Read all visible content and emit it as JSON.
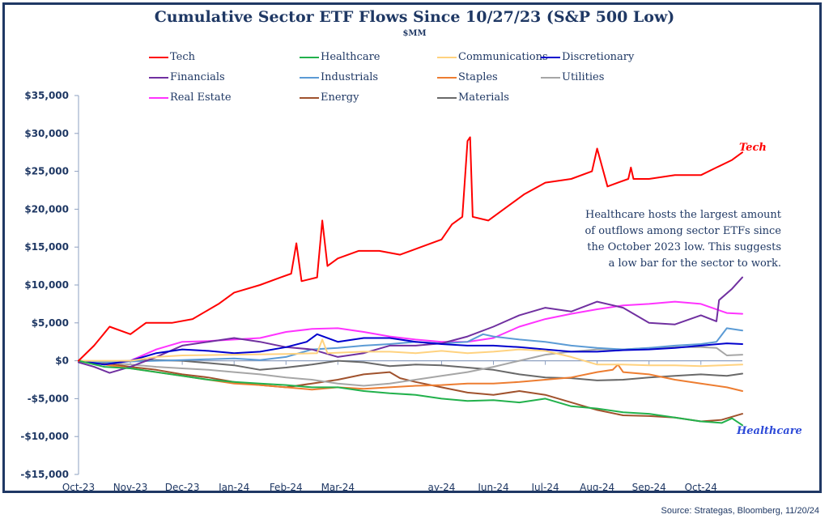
{
  "chart_data": {
    "type": "line",
    "title": "Cumulative Sector ETF Flows Since 10/27/23 (S&P 500 Low)",
    "subtitle": "$MM",
    "xlabel": "",
    "ylabel": "",
    "ylim": [
      -15000,
      35000
    ],
    "yticks": [
      35000,
      30000,
      25000,
      20000,
      15000,
      10000,
      5000,
      0,
      -5000,
      -10000,
      -15000
    ],
    "ytick_labels": [
      "$35,000",
      "$30,000",
      "$25,000",
      "$20,000",
      "$15,000",
      "$10,000",
      "$5,000",
      "$0",
      "-$5,000",
      "-$10,000",
      "-$15,000"
    ],
    "x_range_months": [
      0,
      12.8
    ],
    "xtick_positions": [
      0,
      1,
      2,
      3,
      4,
      5,
      7,
      8,
      9,
      10,
      11,
      12
    ],
    "xtick_labels": [
      "Oct-23",
      "Nov-23",
      "Dec-23",
      "Jan-24",
      "Feb-24",
      "Mar-24",
      "ay-24",
      "Jun-24",
      "Jul-24",
      "Aug-24",
      "Sep-24",
      "Oct-24"
    ],
    "grid": false,
    "legend_position": "top",
    "x_unit": "months since 10/27/23",
    "series": [
      {
        "name": "Tech",
        "color": "#ff0000",
        "x": [
          0,
          0.3,
          0.6,
          1.0,
          1.3,
          1.8,
          2.2,
          2.7,
          3.0,
          3.5,
          3.9,
          4.1,
          4.2,
          4.3,
          4.6,
          4.7,
          4.8,
          5.0,
          5.4,
          5.8,
          6.2,
          6.6,
          7.0,
          7.2,
          7.4,
          7.5,
          7.55,
          7.6,
          7.9,
          8.3,
          8.6,
          9.0,
          9.5,
          9.9,
          10.0,
          10.2,
          10.4,
          10.6,
          10.65,
          10.7,
          11.0,
          11.5,
          12.0,
          12.3,
          12.6,
          12.8
        ],
        "values": [
          0,
          2000,
          4500,
          3500,
          5000,
          5000,
          5500,
          7500,
          9000,
          10000,
          11000,
          11500,
          15500,
          10500,
          11000,
          18500,
          12500,
          13500,
          14500,
          14500,
          14000,
          15000,
          16000,
          18000,
          19000,
          29000,
          29500,
          19000,
          18500,
          20500,
          22000,
          23500,
          24000,
          25000,
          28000,
          23000,
          23500,
          24000,
          25500,
          24000,
          24000,
          24500,
          24500,
          25500,
          26500,
          27500
        ]
      },
      {
        "name": "Healthcare",
        "color": "#22b14c",
        "x": [
          0,
          0.5,
          1.0,
          1.5,
          2.0,
          2.5,
          3.0,
          3.5,
          4.0,
          4.5,
          5.0,
          5.5,
          6.0,
          6.5,
          7.0,
          7.5,
          8.0,
          8.5,
          9.0,
          9.5,
          10.0,
          10.5,
          11.0,
          11.5,
          12.0,
          12.4,
          12.6,
          12.8
        ],
        "values": [
          0,
          -800,
          -1000,
          -1500,
          -2000,
          -2500,
          -2800,
          -3000,
          -3200,
          -3500,
          -3500,
          -4000,
          -4300,
          -4500,
          -5000,
          -5300,
          -5200,
          -5500,
          -5000,
          -6000,
          -6300,
          -6800,
          -7000,
          -7500,
          -8000,
          -8200,
          -7600,
          -8500
        ]
      },
      {
        "name": "Communications",
        "color": "#ffd27f",
        "x": [
          0,
          1.0,
          1.5,
          2.0,
          3.0,
          4.0,
          4.6,
          4.7,
          4.8,
          5.5,
          6.0,
          6.5,
          7.0,
          7.5,
          8.0,
          8.5,
          9.0,
          9.5,
          10.0,
          10.5,
          11.0,
          11.5,
          12.0,
          12.8
        ],
        "values": [
          0,
          0,
          500,
          700,
          800,
          900,
          1000,
          2800,
          1000,
          1200,
          1200,
          1000,
          1300,
          1000,
          1200,
          1500,
          1300,
          500,
          -500,
          -500,
          -600,
          -600,
          -700,
          -500
        ]
      },
      {
        "name": "Discretionary",
        "color": "#0000cd",
        "x": [
          0,
          0.5,
          1.0,
          1.5,
          2.0,
          2.5,
          3.0,
          3.5,
          4.0,
          4.4,
          4.6,
          5.0,
          5.5,
          6.0,
          6.5,
          7.0,
          7.5,
          8.0,
          8.5,
          9.0,
          9.5,
          10.0,
          10.5,
          11.0,
          11.5,
          12.0,
          12.5,
          12.8
        ],
        "values": [
          0,
          -500,
          0,
          1000,
          1500,
          1300,
          1000,
          1200,
          1800,
          2500,
          3500,
          2500,
          3000,
          3000,
          2500,
          2200,
          2000,
          2000,
          1800,
          1500,
          1200,
          1200,
          1400,
          1500,
          1700,
          2000,
          2300,
          2200
        ]
      },
      {
        "name": "Financials",
        "color": "#7030a0",
        "x": [
          0,
          0.3,
          0.6,
          1.0,
          1.5,
          2.0,
          2.5,
          3.0,
          3.5,
          4.0,
          4.5,
          5.0,
          5.5,
          6.0,
          6.5,
          7.0,
          7.5,
          8.0,
          8.5,
          9.0,
          9.5,
          10.0,
          10.5,
          11.0,
          11.5,
          12.0,
          12.3,
          12.35,
          12.6,
          12.8
        ],
        "values": [
          -200,
          -800,
          -1600,
          -800,
          500,
          2000,
          2500,
          3000,
          2500,
          1800,
          1500,
          500,
          1000,
          2000,
          2000,
          2300,
          3200,
          4500,
          6000,
          7000,
          6500,
          7800,
          7000,
          5000,
          4800,
          6000,
          5200,
          8000,
          9500,
          11000
        ]
      },
      {
        "name": "Industrials",
        "color": "#5b9bd5",
        "x": [
          0,
          0.5,
          1.0,
          1.5,
          2.0,
          2.5,
          3.0,
          3.5,
          4.0,
          4.5,
          5.0,
          5.5,
          6.0,
          6.5,
          7.0,
          7.5,
          7.8,
          8.0,
          8.5,
          9.0,
          9.5,
          10.0,
          10.5,
          11.0,
          11.5,
          12.0,
          12.3,
          12.5,
          12.8
        ],
        "values": [
          0,
          -200,
          -100,
          0,
          100,
          200,
          300,
          100,
          500,
          1500,
          1700,
          2000,
          2200,
          2500,
          2300,
          2500,
          3500,
          3200,
          2800,
          2500,
          2000,
          1700,
          1500,
          1700,
          2000,
          2200,
          2500,
          4300,
          4000
        ]
      },
      {
        "name": "Staples",
        "color": "#ed7d31",
        "x": [
          0,
          0.5,
          1.0,
          1.5,
          2.0,
          2.5,
          3.0,
          3.5,
          4.0,
          4.5,
          5.0,
          5.5,
          6.0,
          6.5,
          7.0,
          7.5,
          8.0,
          8.5,
          9.0,
          9.5,
          10.0,
          10.3,
          10.4,
          10.5,
          11.0,
          11.5,
          12.0,
          12.5,
          12.8
        ],
        "values": [
          0,
          -500,
          -1000,
          -1500,
          -2000,
          -2500,
          -3000,
          -3200,
          -3500,
          -3800,
          -3500,
          -3700,
          -3500,
          -3300,
          -3200,
          -3000,
          -3000,
          -2800,
          -2500,
          -2200,
          -1500,
          -1200,
          -500,
          -1500,
          -1800,
          -2500,
          -3000,
          -3500,
          -4000
        ]
      },
      {
        "name": "Utilities",
        "color": "#a6a6a6",
        "x": [
          0,
          0.5,
          1.0,
          1.5,
          2.0,
          2.5,
          3.0,
          3.5,
          4.0,
          4.5,
          5.0,
          5.5,
          6.0,
          6.5,
          7.0,
          7.5,
          8.0,
          8.5,
          9.0,
          9.5,
          10.0,
          10.5,
          11.0,
          11.5,
          12.0,
          12.3,
          12.5,
          12.8
        ],
        "values": [
          0,
          -200,
          -500,
          -800,
          -1000,
          -1200,
          -1500,
          -1800,
          -2200,
          -2500,
          -3000,
          -3300,
          -3000,
          -2500,
          -2000,
          -1500,
          -800,
          0,
          800,
          1200,
          1500,
          1500,
          1700,
          1800,
          1800,
          1700,
          700,
          800
        ]
      },
      {
        "name": "Real Estate",
        "color": "#ff33ff",
        "x": [
          0,
          0.5,
          1.0,
          1.5,
          2.0,
          2.5,
          3.0,
          3.5,
          4.0,
          4.5,
          5.0,
          5.5,
          6.0,
          6.5,
          7.0,
          7.5,
          8.0,
          8.5,
          9.0,
          9.5,
          10.0,
          10.5,
          11.0,
          11.5,
          12.0,
          12.5,
          12.8
        ],
        "values": [
          0,
          -500,
          0,
          1500,
          2500,
          2600,
          2800,
          3000,
          3800,
          4200,
          4300,
          3800,
          3200,
          2800,
          2500,
          2500,
          3000,
          4500,
          5500,
          6200,
          6800,
          7300,
          7500,
          7800,
          7500,
          6300,
          6200
        ]
      },
      {
        "name": "Energy",
        "color": "#a0522d",
        "x": [
          0,
          0.5,
          1.0,
          1.5,
          2.0,
          2.5,
          3.0,
          3.5,
          4.0,
          4.5,
          5.0,
          5.5,
          6.0,
          6.2,
          6.5,
          7.0,
          7.5,
          8.0,
          8.5,
          9.0,
          9.5,
          10.0,
          10.5,
          11.0,
          11.5,
          12.0,
          12.4,
          12.8
        ],
        "values": [
          0,
          -300,
          -800,
          -1200,
          -1800,
          -2200,
          -2800,
          -3200,
          -3500,
          -3000,
          -2500,
          -1800,
          -1500,
          -2300,
          -2800,
          -3500,
          -4200,
          -4500,
          -4000,
          -4500,
          -5500,
          -6500,
          -7200,
          -7300,
          -7500,
          -8000,
          -7800,
          -7000
        ]
      },
      {
        "name": "Materials",
        "color": "#696969",
        "x": [
          0,
          0.5,
          1.0,
          1.5,
          2.0,
          2.5,
          3.0,
          3.5,
          4.0,
          4.5,
          5.0,
          5.5,
          6.0,
          6.5,
          7.0,
          7.5,
          8.0,
          8.5,
          9.0,
          9.5,
          10.0,
          10.5,
          11.0,
          11.5,
          12.0,
          12.5,
          12.8
        ],
        "values": [
          0,
          -100,
          0,
          100,
          0,
          -300,
          -600,
          -1200,
          -900,
          -500,
          0,
          -200,
          -700,
          -500,
          -600,
          -900,
          -1200,
          -1800,
          -2200,
          -2300,
          -2600,
          -2500,
          -2200,
          -2000,
          -1800,
          -2000,
          -1700
        ]
      }
    ],
    "annotations": [
      {
        "text": "Tech",
        "color": "#ff0000",
        "anchor": "end-of-series",
        "series": "Tech"
      },
      {
        "text": "Healthcare",
        "color": "#2e4bd8",
        "anchor": "end-of-series",
        "series": "Healthcare"
      },
      {
        "text": "Healthcare hosts the largest amount of outflows among sector ETFs since the October 2023 low. This suggests a low bar for the sector to work.",
        "color": "#1f3864",
        "anchor": "upper-right"
      }
    ]
  },
  "header": {
    "title": "Cumulative Sector ETF Flows Since 10/27/23 (S&P 500 Low)",
    "subtitle": "$MM"
  },
  "legend": {
    "items": [
      {
        "label": "Tech",
        "color": "#ff0000"
      },
      {
        "label": "Healthcare",
        "color": "#22b14c"
      },
      {
        "label": "Communications",
        "color": "#ffd27f"
      },
      {
        "label": "Discretionary",
        "color": "#0000cd"
      },
      {
        "label": "Financials",
        "color": "#7030a0"
      },
      {
        "label": "Industrials",
        "color": "#5b9bd5"
      },
      {
        "label": "Staples",
        "color": "#ed7d31"
      },
      {
        "label": "Utilities",
        "color": "#a6a6a6"
      },
      {
        "label": "Real Estate",
        "color": "#ff33ff"
      },
      {
        "label": "Energy",
        "color": "#a0522d"
      },
      {
        "label": "Materials",
        "color": "#696969"
      }
    ]
  },
  "annotation_lines": [
    "Healthcare hosts the largest amount",
    "of outflows among sector ETFs since",
    "the October 2023 low. This suggests",
    "a low bar for the sector to work."
  ],
  "end_labels": {
    "tech": "Tech",
    "healthcare": "Healthcare"
  },
  "colors": {
    "frame": "#1f3864",
    "text": "#1f3864",
    "axis": "#8ea0c0",
    "tech_label": "#ff0000",
    "healthcare_label": "#2e4bd8"
  },
  "footer": {
    "source": "Source: Strategas, Bloomberg, 11/20/24"
  }
}
